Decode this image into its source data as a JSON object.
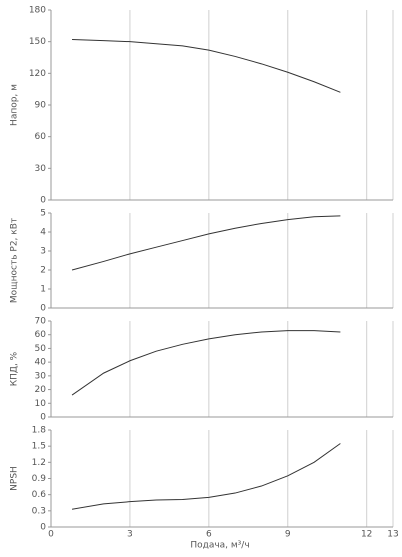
{
  "chart_data": [
    {
      "type": "line",
      "ylabel": "Напор, м",
      "x": [
        0.8,
        2,
        3,
        4,
        5,
        6,
        7,
        8,
        9,
        10,
        11
      ],
      "series": [
        {
          "color": "#333333",
          "values": [
            152,
            151,
            150,
            148,
            146,
            142,
            136,
            129,
            121,
            112,
            102
          ]
        }
      ],
      "xlim": [
        0,
        13
      ],
      "xticks": [
        0,
        3,
        6,
        9,
        12,
        13
      ],
      "ylim": [
        0,
        180
      ],
      "yticks": [
        0,
        30,
        60,
        90,
        120,
        150,
        180
      ],
      "grid": true
    },
    {
      "type": "line",
      "ylabel": "Мощность P2, кВт",
      "x": [
        0.8,
        2,
        3,
        4,
        5,
        6,
        7,
        8,
        9,
        10,
        11
      ],
      "series": [
        {
          "color": "#333333",
          "values": [
            2.0,
            2.45,
            2.85,
            3.2,
            3.55,
            3.9,
            4.2,
            4.45,
            4.65,
            4.8,
            4.85
          ]
        }
      ],
      "xlim": [
        0,
        13
      ],
      "xticks": [
        0,
        3,
        6,
        9,
        12,
        13
      ],
      "ylim": [
        0,
        5
      ],
      "yticks": [
        0,
        1,
        2,
        3,
        4,
        5
      ],
      "grid": true
    },
    {
      "type": "line",
      "ylabel": "КПД, %",
      "x": [
        0.8,
        2,
        3,
        4,
        5,
        6,
        7,
        8,
        9,
        10,
        11
      ],
      "series": [
        {
          "color": "#333333",
          "values": [
            16,
            32,
            41,
            48,
            53,
            57,
            60,
            62,
            63,
            63,
            62
          ]
        }
      ],
      "xlim": [
        0,
        13
      ],
      "xticks": [
        0,
        3,
        6,
        9,
        12,
        13
      ],
      "ylim": [
        0,
        70
      ],
      "yticks": [
        0,
        10,
        20,
        30,
        40,
        50,
        60,
        70
      ],
      "grid": true
    },
    {
      "type": "line",
      "ylabel": "NPSH",
      "xlabel": "Подача, м³/ч",
      "x": [
        0.8,
        2,
        3,
        4,
        5,
        6,
        7,
        8,
        9,
        10,
        11
      ],
      "series": [
        {
          "color": "#333333",
          "values": [
            0.33,
            0.43,
            0.47,
            0.5,
            0.51,
            0.55,
            0.63,
            0.76,
            0.95,
            1.2,
            1.55
          ]
        }
      ],
      "xlim": [
        0,
        13
      ],
      "xticks": [
        0,
        3,
        6,
        9,
        12,
        13
      ],
      "ylim": [
        0,
        1.8
      ],
      "yticks": [
        0,
        0.3,
        0.6,
        0.9,
        1.2,
        1.5,
        1.8
      ],
      "grid": true
    }
  ]
}
